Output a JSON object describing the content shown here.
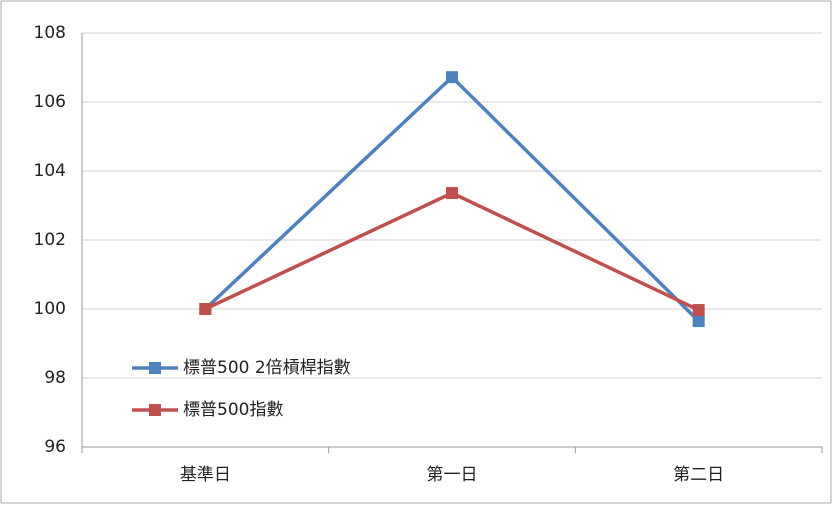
{
  "chart_data": {
    "type": "line",
    "categories": [
      "基準日",
      "第一日",
      "第二日"
    ],
    "series": [
      {
        "name": "標普500 2倍槓桿指數",
        "color": "#4f81bd",
        "values": [
          100,
          106.72,
          99.65
        ]
      },
      {
        "name": "標普500指數",
        "color": "#c0504d",
        "values": [
          100,
          103.36,
          99.97
        ]
      }
    ],
    "ylim": [
      96,
      108
    ],
    "yticks": [
      96,
      98,
      100,
      102,
      104,
      106,
      108
    ],
    "grid": true,
    "legend": "lower left"
  }
}
